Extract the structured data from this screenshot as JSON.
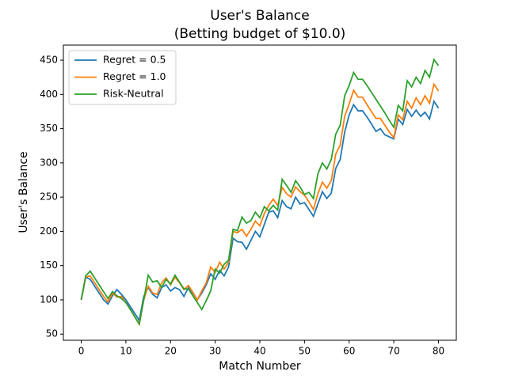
{
  "chart_data": {
    "type": "line",
    "title": "User's Balance",
    "subtitle": "(Betting budget of $10.0)",
    "xlabel": "Match Number",
    "ylabel": "User's Balance",
    "x": [
      0,
      1,
      2,
      3,
      4,
      5,
      6,
      7,
      8,
      9,
      10,
      11,
      12,
      13,
      14,
      15,
      16,
      17,
      18,
      19,
      20,
      21,
      22,
      23,
      24,
      25,
      26,
      27,
      28,
      29,
      30,
      31,
      32,
      33,
      34,
      35,
      36,
      37,
      38,
      39,
      40,
      41,
      42,
      43,
      44,
      45,
      46,
      47,
      48,
      49,
      50,
      51,
      52,
      53,
      54,
      55,
      56,
      57,
      58,
      59,
      60,
      61,
      62,
      63,
      64,
      65,
      66,
      67,
      68,
      69,
      70,
      71,
      72,
      73,
      74,
      75,
      76,
      77,
      78,
      79,
      80
    ],
    "series": [
      {
        "name": "Regret = 0.5",
        "color": "#1f77b4",
        "values": [
          100,
          133,
          130,
          120,
          110,
          100,
          94,
          106,
          115,
          108,
          100,
          90,
          80,
          70,
          105,
          118,
          108,
          103,
          118,
          122,
          113,
          118,
          115,
          105,
          118,
          110,
          100,
          110,
          122,
          138,
          130,
          143,
          135,
          148,
          190,
          185,
          184,
          174,
          187,
          200,
          192,
          210,
          228,
          230,
          220,
          245,
          236,
          233,
          250,
          240,
          242,
          232,
          222,
          240,
          258,
          248,
          256,
          292,
          305,
          345,
          370,
          385,
          376,
          376,
          367,
          357,
          346,
          350,
          341,
          338,
          335,
          364,
          356,
          378,
          368,
          377,
          368,
          374,
          364,
          390,
          380
        ]
      },
      {
        "name": "Regret = 1.0",
        "color": "#ff7f0e",
        "values": [
          100,
          133,
          135,
          125,
          115,
          105,
          97,
          110,
          104,
          105,
          96,
          86,
          75,
          64,
          100,
          120,
          110,
          108,
          125,
          132,
          122,
          133,
          125,
          115,
          121,
          111,
          100,
          113,
          125,
          148,
          140,
          155,
          145,
          155,
          200,
          198,
          203,
          193,
          203,
          215,
          208,
          226,
          238,
          247,
          238,
          264,
          255,
          250,
          265,
          258,
          253,
          243,
          232,
          255,
          272,
          263,
          274,
          313,
          326,
          368,
          386,
          406,
          396,
          396,
          385,
          375,
          365,
          365,
          355,
          345,
          337,
          370,
          363,
          390,
          380,
          395,
          385,
          398,
          387,
          415,
          405
        ]
      },
      {
        "name": "Risk-Neutral",
        "color": "#2ca02c",
        "values": [
          100,
          135,
          142,
          132,
          122,
          112,
          102,
          112,
          106,
          102,
          96,
          86,
          75,
          65,
          100,
          136,
          126,
          128,
          118,
          130,
          123,
          136,
          126,
          116,
          116,
          106,
          96,
          86,
          99,
          113,
          145,
          139,
          152,
          158,
          203,
          201,
          221,
          212,
          216,
          228,
          220,
          236,
          230,
          238,
          231,
          276,
          267,
          257,
          274,
          265,
          254,
          257,
          248,
          284,
          300,
          291,
          305,
          342,
          355,
          398,
          413,
          432,
          422,
          422,
          413,
          403,
          393,
          383,
          373,
          362,
          352,
          384,
          376,
          420,
          411,
          425,
          416,
          435,
          425,
          451,
          442
        ]
      }
    ],
    "xlim": [
      -4,
      84
    ],
    "xticks": [
      0,
      10,
      20,
      30,
      40,
      50,
      60,
      70,
      80
    ],
    "ylim": [
      41,
      472
    ],
    "yticks": [
      50,
      100,
      150,
      200,
      250,
      300,
      350,
      400,
      450
    ],
    "legend": "upper left"
  }
}
